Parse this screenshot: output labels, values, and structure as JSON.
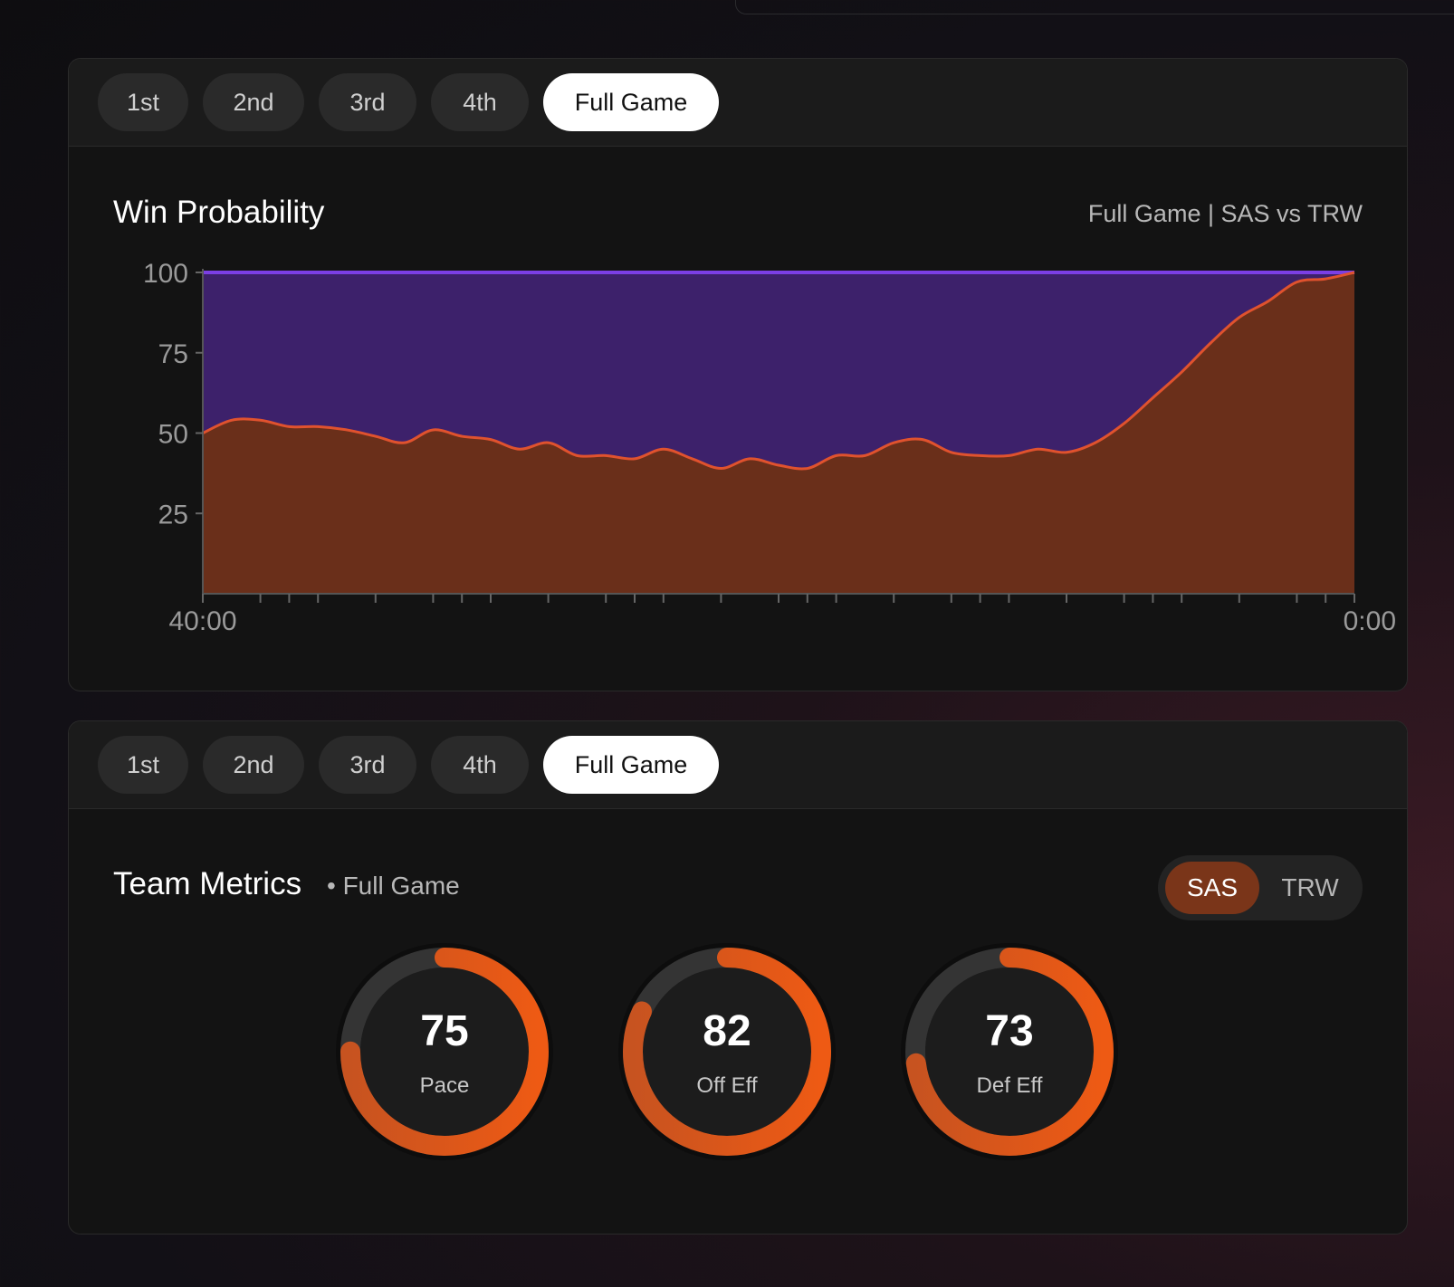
{
  "tabs": [
    "1st",
    "2nd",
    "3rd",
    "4th",
    "Full Game"
  ],
  "active_tab_index": 4,
  "win_probability": {
    "title": "Win Probability",
    "subtitle": "Full Game | SAS vs TRW"
  },
  "team_metrics": {
    "title": "Team Metrics",
    "subtitle": "• Full Game",
    "teams": [
      "SAS",
      "TRW"
    ],
    "selected_team": "SAS",
    "metrics": [
      {
        "value": "75",
        "label": "Pace"
      },
      {
        "value": "82",
        "label": "Off Eff"
      },
      {
        "value": "73",
        "label": "Def Eff"
      }
    ]
  },
  "colors": {
    "team_a_area": "#6a2f1a",
    "team_a_line": "#e0522e",
    "team_b_area": "#3d216b",
    "team_b_line": "#7b3fe4",
    "gauge_track": "#343434",
    "gauge_arc_light": "#c75320",
    "gauge_arc_bright": "#ee5a14"
  },
  "chart_data": {
    "type": "area",
    "title": "Win Probability",
    "ylim": [
      0,
      100
    ],
    "yticks": [
      25,
      50,
      75,
      100
    ],
    "xtick_labels": [
      "40:00",
      "0:00"
    ],
    "x_start_label": "40:00",
    "x_end_label": "0:00",
    "x_minutes": [
      40,
      39,
      38,
      37,
      36,
      35,
      34,
      33,
      32,
      31,
      30,
      29,
      28,
      27,
      26,
      25,
      24,
      23,
      22,
      21,
      20,
      19,
      18,
      17,
      16,
      15,
      14,
      13,
      12,
      11,
      10,
      9,
      8,
      7,
      6,
      5,
      4,
      3,
      2,
      1,
      0
    ],
    "series": [
      {
        "name": "SAS",
        "values": [
          50,
          54,
          54,
          52,
          52,
          51,
          49,
          47,
          51,
          49,
          48,
          45,
          47,
          43,
          43,
          42,
          45,
          42,
          39,
          42,
          40,
          39,
          43,
          43,
          47,
          48,
          44,
          43,
          43,
          45,
          44,
          47,
          53,
          61,
          69,
          78,
          86,
          91,
          97,
          98,
          100
        ]
      },
      {
        "name": "TRW",
        "values": [
          50,
          46,
          46,
          48,
          48,
          49,
          51,
          53,
          49,
          51,
          52,
          55,
          53,
          57,
          57,
          58,
          55,
          58,
          61,
          58,
          60,
          61,
          57,
          57,
          53,
          52,
          56,
          57,
          57,
          55,
          56,
          53,
          47,
          39,
          31,
          22,
          14,
          9,
          3,
          2,
          0
        ]
      }
    ],
    "grid": false,
    "legend": "none"
  }
}
